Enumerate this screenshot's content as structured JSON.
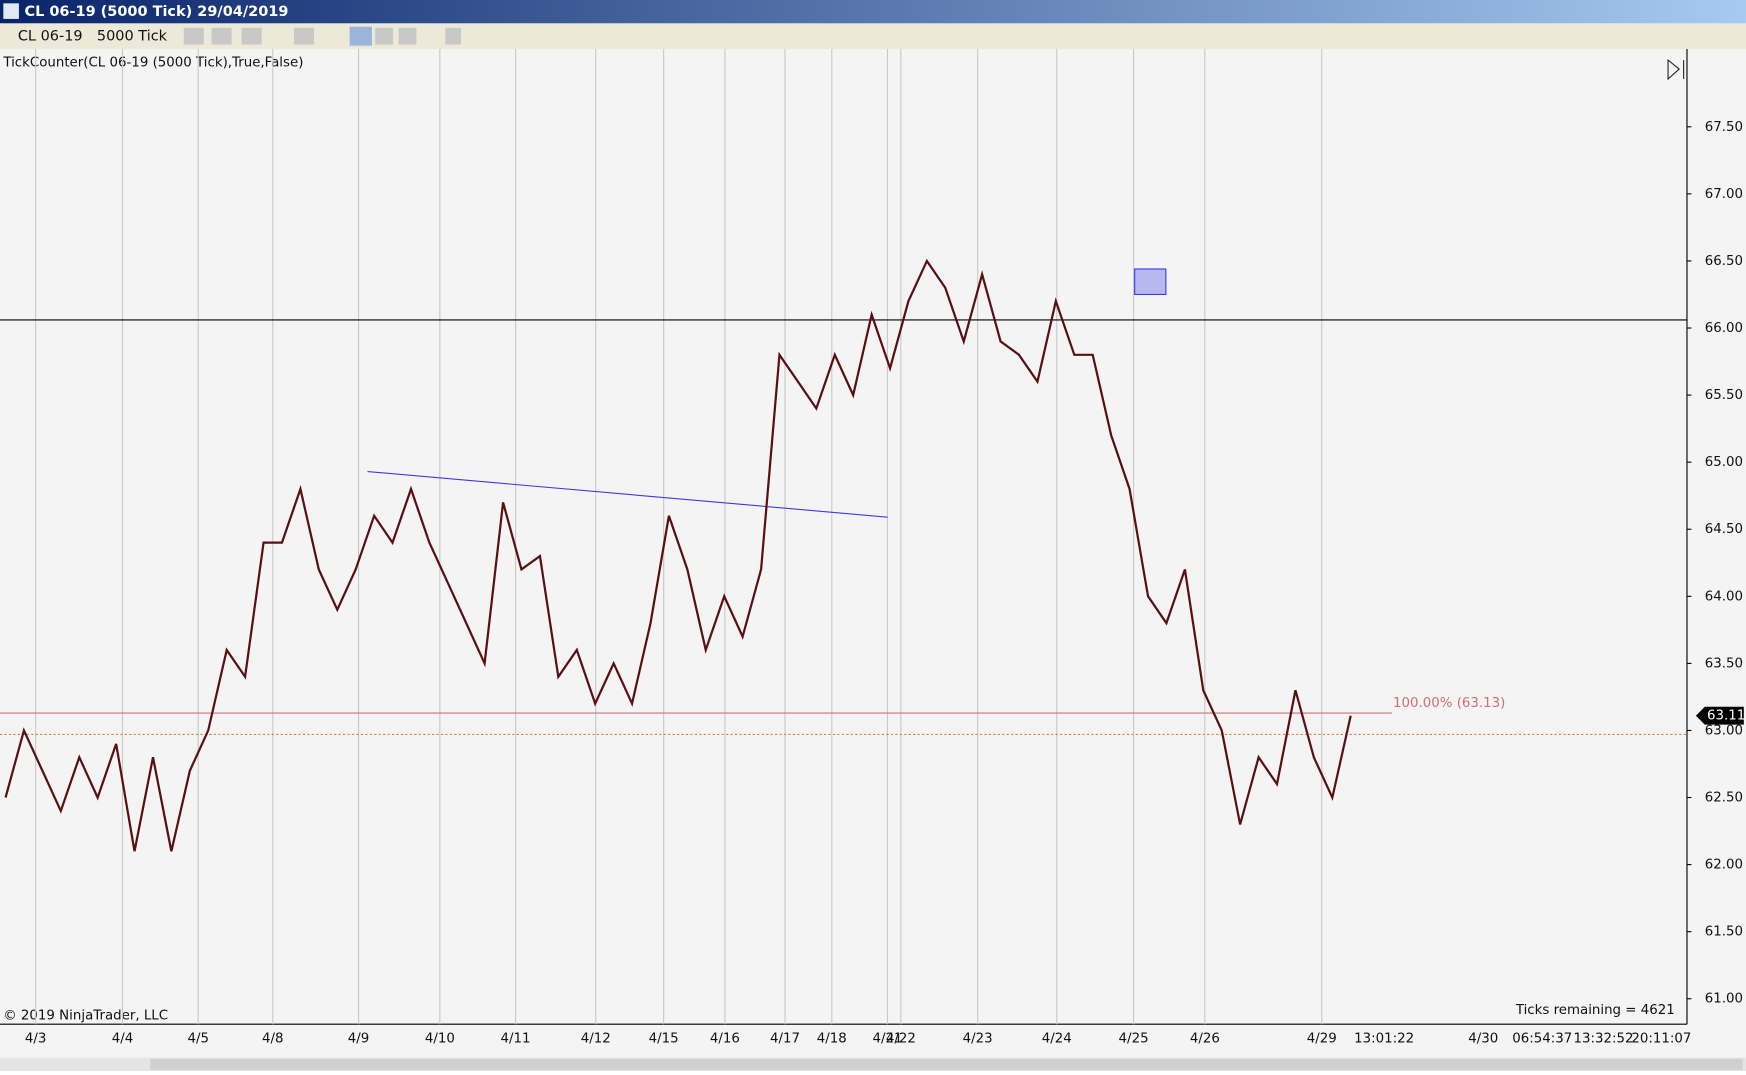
{
  "window": {
    "title": "CL 06-19 (5000 Tick)  29/04/2019"
  },
  "toolbar": {
    "instrument": "CL 06-19",
    "interval": "5000 Tick"
  },
  "indicator": "TickCounter(CL 06-19 (5000 Tick),True,False)",
  "copyright": "© 2019 NinjaTrader, LLC",
  "ticks_remaining": "Ticks remaining = 4621",
  "chart_data": {
    "type": "line",
    "x_labels": [
      "4/3",
      "4/4",
      "4/5",
      "4/8",
      "4/9",
      "4/10",
      "4/11",
      "4/12",
      "4/15",
      "4/16",
      "4/17",
      "4/18",
      "4/21",
      "4/22",
      "4/23",
      "4/24",
      "4/25",
      "4/26",
      "4/29",
      "13:01:22",
      "4/30",
      "06:54:37",
      "13:32:52",
      "20:11:07"
    ],
    "values": [
      62.5,
      63.0,
      62.7,
      62.4,
      62.8,
      62.5,
      62.9,
      62.1,
      62.8,
      62.1,
      62.7,
      63.0,
      63.6,
      63.4,
      64.4,
      64.4,
      64.8,
      64.2,
      63.9,
      64.2,
      64.6,
      64.4,
      64.8,
      64.4,
      64.1,
      63.8,
      63.5,
      64.7,
      64.2,
      64.3,
      63.4,
      63.6,
      63.2,
      63.5,
      63.2,
      63.8,
      64.6,
      64.2,
      63.6,
      64.0,
      63.7,
      64.2,
      65.8,
      65.6,
      65.4,
      65.8,
      65.5,
      66.1,
      65.7,
      66.2,
      66.5,
      66.3,
      65.9,
      66.4,
      65.9,
      65.8,
      65.6,
      66.2,
      65.8,
      65.8,
      65.2,
      64.8,
      64.0,
      63.8,
      64.2,
      63.3,
      63.0,
      62.3,
      62.8,
      62.6,
      63.3,
      62.8,
      62.5,
      63.11
    ],
    "color": "#5a1010",
    "ylim": [
      60.81,
      68.08
    ],
    "yticks": [
      {
        "value": 61,
        "label": "61.00"
      },
      {
        "value": 61.5,
        "label": "61.50"
      },
      {
        "value": 62,
        "label": "62.00"
      },
      {
        "value": 62.5,
        "label": "62.50"
      },
      {
        "value": 63,
        "label": "63.00"
      },
      {
        "value": 63.5,
        "label": "63.50"
      },
      {
        "value": 64,
        "label": "64.00"
      },
      {
        "value": 64.5,
        "label": "64.50"
      },
      {
        "value": 65,
        "label": "65.00"
      },
      {
        "value": 65.5,
        "label": "65.50"
      },
      {
        "value": 66,
        "label": "66.00"
      },
      {
        "value": 66.5,
        "label": "66.50"
      },
      {
        "value": 67,
        "label": "67.00"
      },
      {
        "value": 67.5,
        "label": "67.50"
      }
    ],
    "horizontal_lines": [
      {
        "value": 66.06,
        "color": "#000000"
      },
      {
        "value": 63.13,
        "color": "#d07070",
        "label": "100.00% (63.13)"
      },
      {
        "value": 62.97,
        "color": "#e08050"
      }
    ],
    "trend_line": {
      "values": [
        64.93,
        64.59
      ],
      "color": "#3a3ae8"
    },
    "box": {
      "values": [
        66.25,
        66.44
      ],
      "color": "#b8b8f0"
    },
    "last_price": {
      "value": 63.11,
      "label": "63.11"
    }
  }
}
